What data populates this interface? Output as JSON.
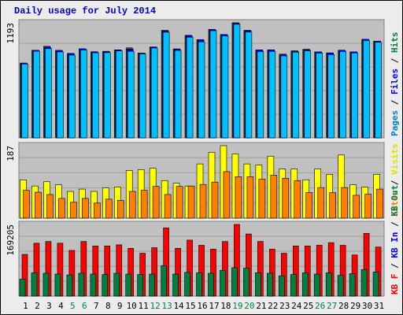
{
  "title": "Daily usage for July 2014",
  "colors": {
    "pages": "#0080c0",
    "files": "#0000ff",
    "hits": "#008040",
    "visits": "#e0e000",
    "sites": "#ff8000",
    "kb_out": "#008040",
    "kb_in": "#0000ff",
    "kb_f": "#ff0000",
    "panel": "#c0c0c0",
    "weekend": "#008040",
    "weekday": "#000000"
  },
  "chart_data": [
    {
      "type": "bar",
      "ymax_label": "1193",
      "legend": [
        "Pages",
        "Files",
        "Hits"
      ],
      "categories": [
        "1",
        "2",
        "3",
        "4",
        "5",
        "6",
        "7",
        "8",
        "9",
        "10",
        "11",
        "12",
        "13",
        "14",
        "15",
        "16",
        "17",
        "18",
        "19",
        "20",
        "21",
        "22",
        "23",
        "24",
        "25",
        "26",
        "27",
        "28",
        "29",
        "30",
        "31"
      ],
      "weekend_days": [
        "5",
        "6",
        "12",
        "13",
        "19",
        "20",
        "26",
        "27"
      ],
      "ylim": [
        0,
        1193
      ],
      "series": [
        {
          "name": "Hits",
          "values": [
            775,
            908,
            950,
            907,
            875,
            923,
            893,
            897,
            912,
            934,
            880,
            942,
            1115,
            922,
            1063,
            1019,
            1125,
            1072,
            1193,
            1115,
            912,
            913,
            868,
            902,
            918,
            891,
            881,
            909,
            892,
            1022,
            1003
          ]
        },
        {
          "name": "Files",
          "values": [
            775,
            908,
            940,
            907,
            875,
            923,
            893,
            897,
            912,
            921,
            880,
            942,
            1112,
            922,
            1062,
            1019,
            1125,
            1072,
            1193,
            1115,
            912,
            913,
            868,
            902,
            918,
            891,
            881,
            909,
            892,
            1022,
            1003
          ]
        },
        {
          "name": "Pages",
          "values": [
            766,
            899,
            925,
            891,
            858,
            912,
            882,
            884,
            902,
            898,
            871,
            932,
            1096,
            907,
            1044,
            996,
            1111,
            1057,
            1178,
            1097,
            895,
            897,
            850,
            889,
            903,
            880,
            864,
            896,
            881,
            1010,
            991
          ]
        }
      ]
    },
    {
      "type": "bar",
      "ymax_label": "187",
      "legend": [
        "Visits",
        "Sites"
      ],
      "categories": [
        "1",
        "2",
        "3",
        "4",
        "5",
        "6",
        "7",
        "8",
        "9",
        "10",
        "11",
        "12",
        "13",
        "14",
        "15",
        "16",
        "17",
        "18",
        "19",
        "20",
        "21",
        "22",
        "23",
        "24",
        "25",
        "26",
        "27",
        "28",
        "29",
        "30",
        "31"
      ],
      "ylim": [
        0,
        187
      ],
      "series": [
        {
          "name": "Visits",
          "values": [
            99,
            83,
            94,
            86,
            69,
            75,
            69,
            78,
            80,
            123,
            125,
            129,
            97,
            90,
            83,
            140,
            170,
            187,
            166,
            140,
            137,
            160,
            127,
            127,
            99,
            127,
            113,
            163,
            86,
            80,
            113
          ]
        },
        {
          "name": "Sites",
          "values": [
            72,
            67,
            61,
            51,
            41,
            51,
            39,
            49,
            46,
            69,
            72,
            82,
            61,
            82,
            83,
            87,
            93,
            120,
            107,
            107,
            101,
            111,
            103,
            97,
            66,
            79,
            66,
            79,
            59,
            62,
            75
          ]
        }
      ]
    },
    {
      "type": "bar",
      "ymax_label": "169205",
      "legend": [
        "KB F",
        "KB In",
        "KB Out"
      ],
      "categories": [
        "1",
        "2",
        "3",
        "4",
        "5",
        "6",
        "7",
        "8",
        "9",
        "10",
        "11",
        "12",
        "13",
        "14",
        "15",
        "16",
        "17",
        "18",
        "19",
        "20",
        "21",
        "22",
        "23",
        "24",
        "25",
        "26",
        "27",
        "28",
        "29",
        "30",
        "31"
      ],
      "ylim": [
        0,
        169205
      ],
      "series": [
        {
          "name": "KB F",
          "values": [
            98466,
            124836,
            129001,
            124836,
            107887,
            129001,
            118355,
            118355,
            121150,
            112819,
            101261,
            114318,
            161028,
            112819,
            132167,
            119952,
            110819,
            128934,
            169205,
            146716,
            129045,
            110848,
            101305,
            118438,
            118438,
            120038,
            126233,
            119960,
            97143,
            148294,
            115833
          ]
        },
        {
          "name": "KB Out",
          "values": [
            40000,
            55000,
            54000,
            52000,
            50000,
            54000,
            52000,
            51000,
            54000,
            52000,
            51000,
            52000,
            72000,
            52000,
            56000,
            55000,
            54000,
            61000,
            67000,
            66000,
            55000,
            54000,
            48000,
            51000,
            55000,
            52000,
            55000,
            49000,
            53000,
            63000,
            57000
          ]
        }
      ]
    }
  ]
}
